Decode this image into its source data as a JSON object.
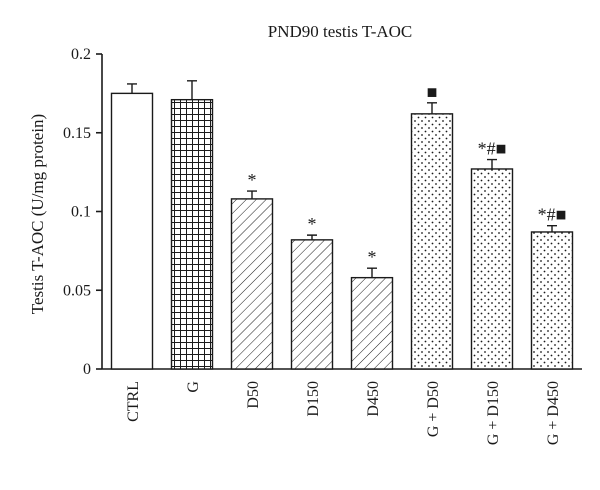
{
  "chart_data": {
    "type": "bar",
    "title": "PND90 testis T-AOC",
    "xlabel": "",
    "ylabel": "Testis T-AOC (U/mg protein)",
    "ylim": [
      0,
      0.2
    ],
    "yticks": [
      "0",
      "0.05",
      "0.1",
      "0.15",
      "0.2"
    ],
    "categories": [
      "CTRL",
      "G",
      "D50",
      "D150",
      "D450",
      "G + D50",
      "G + D150",
      "G + D450"
    ],
    "values": [
      0.175,
      0.171,
      0.108,
      0.082,
      0.058,
      0.162,
      0.127,
      0.087
    ],
    "errors": [
      0.006,
      0.012,
      0.005,
      0.003,
      0.006,
      0.007,
      0.006,
      0.004
    ],
    "patterns": [
      "none",
      "grid",
      "diagonal",
      "diagonal",
      "diagonal",
      "dots",
      "dots",
      "dots"
    ],
    "annotations": [
      "",
      "",
      "*",
      "*",
      "*",
      "■",
      "*#■",
      "*#■"
    ],
    "grid": false,
    "legend": "none",
    "colors": {
      "fill": "#ffffff",
      "ink": "#1a1a1a"
    }
  }
}
